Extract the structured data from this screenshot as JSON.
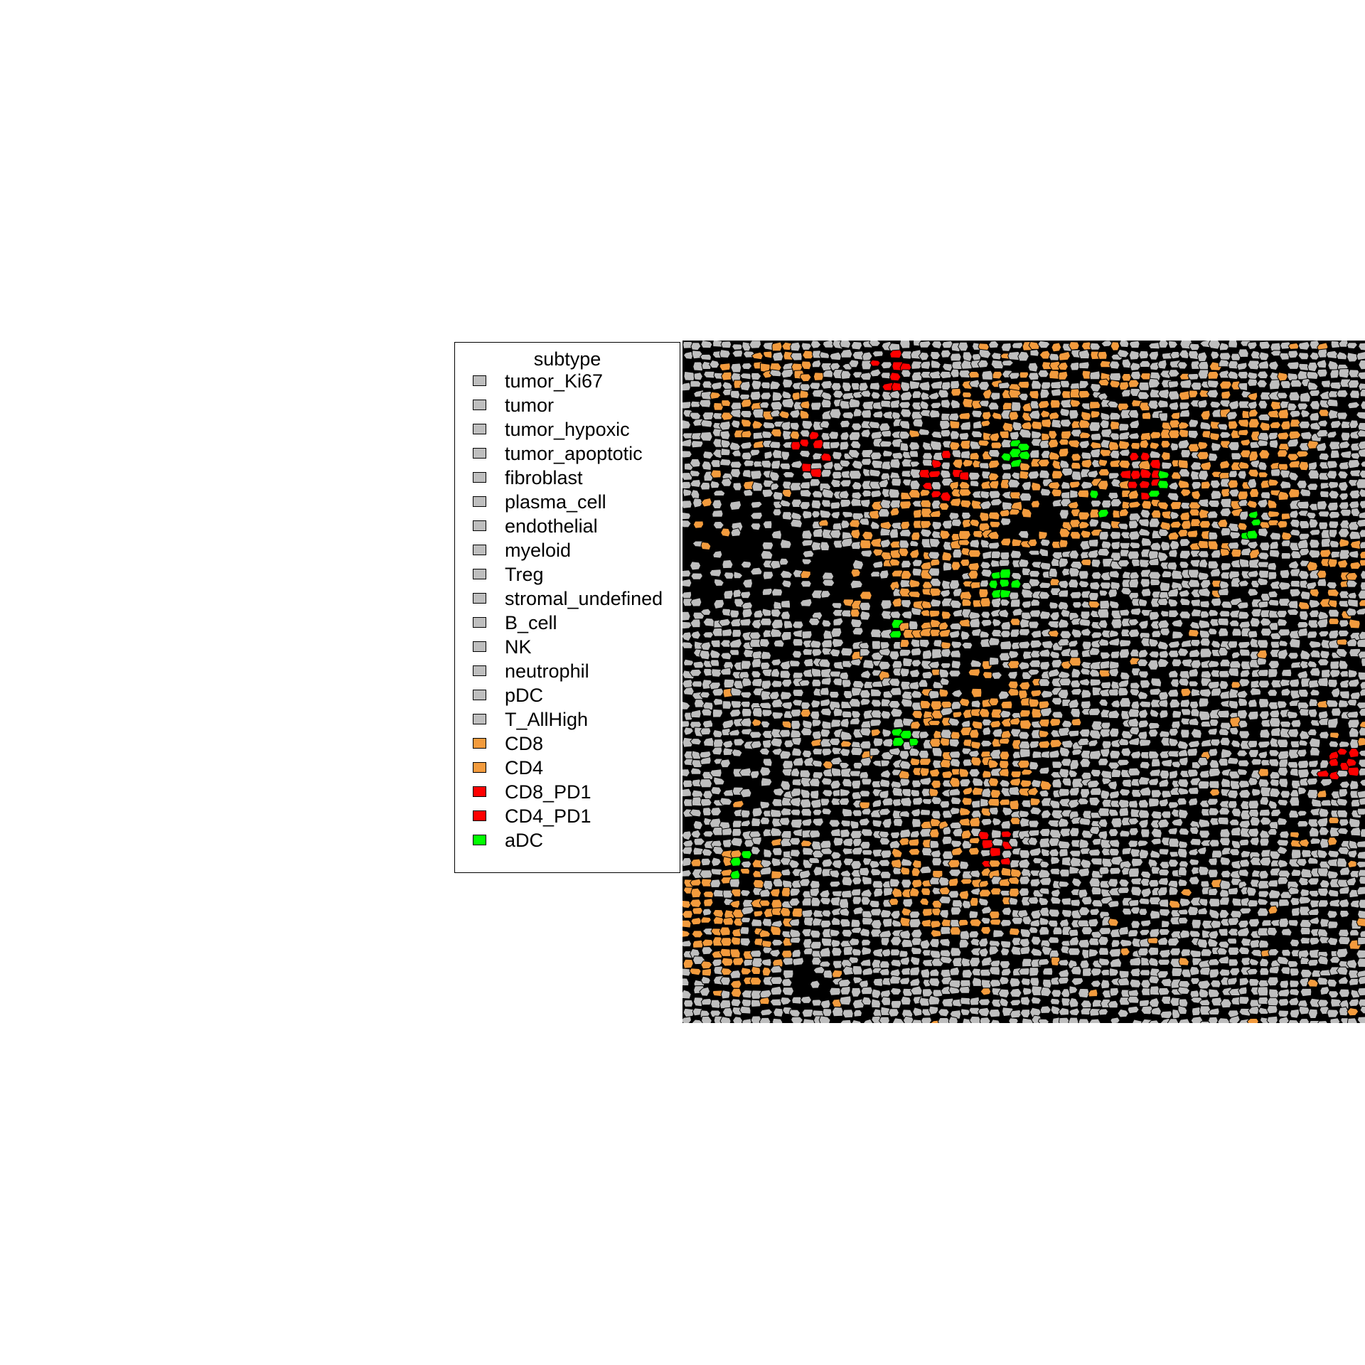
{
  "legend": {
    "title": "subtype",
    "items": [
      {
        "label": "tumor_Ki67",
        "color": "#bebebe"
      },
      {
        "label": "tumor",
        "color": "#bebebe"
      },
      {
        "label": "tumor_hypoxic",
        "color": "#bebebe"
      },
      {
        "label": "tumor_apoptotic",
        "color": "#bebebe"
      },
      {
        "label": "fibroblast",
        "color": "#bebebe"
      },
      {
        "label": "plasma_cell",
        "color": "#bebebe"
      },
      {
        "label": "endothelial",
        "color": "#bebebe"
      },
      {
        "label": "myeloid",
        "color": "#bebebe"
      },
      {
        "label": "Treg",
        "color": "#bebebe"
      },
      {
        "label": "stromal_undefined",
        "color": "#bebebe"
      },
      {
        "label": "B_cell",
        "color": "#bebebe"
      },
      {
        "label": "NK",
        "color": "#bebebe"
      },
      {
        "label": "neutrophil",
        "color": "#bebebe"
      },
      {
        "label": "pDC",
        "color": "#bebebe"
      },
      {
        "label": "T_AllHigh",
        "color": "#bebebe"
      },
      {
        "label": "CD8",
        "color": "#f39b3d"
      },
      {
        "label": "CD4",
        "color": "#f39b3d"
      },
      {
        "label": "CD8_PD1",
        "color": "#ff0000"
      },
      {
        "label": "CD4_PD1",
        "color": "#ff0000"
      },
      {
        "label": "aDC",
        "color": "#00ff00"
      }
    ]
  },
  "colors": {
    "background": "#000000",
    "cell_border": "#000000",
    "gray": "#bebebe",
    "orange": "#f39b3d",
    "red": "#ff0000",
    "green": "#00ff00"
  }
}
